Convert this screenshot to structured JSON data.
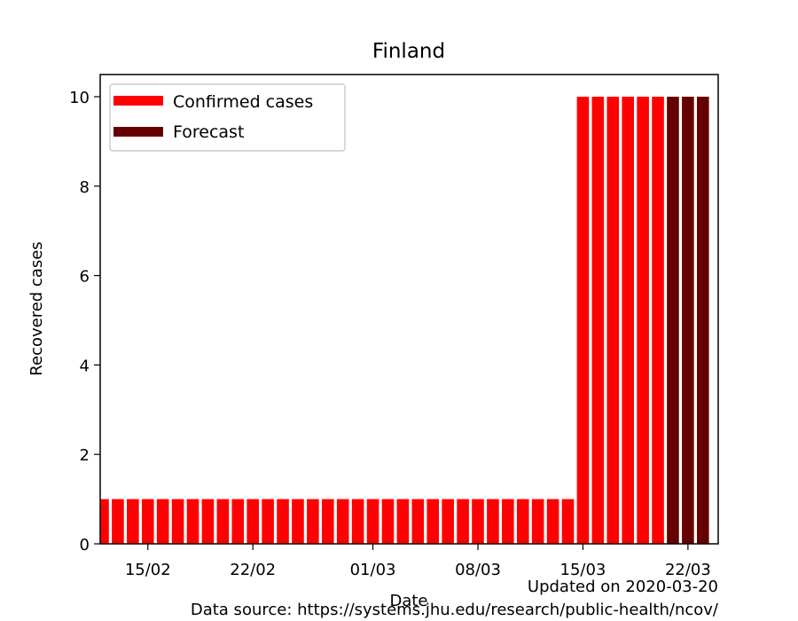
{
  "chart_data": {
    "type": "bar",
    "title": "Finland",
    "xlabel": "Date",
    "ylabel": "Recovered cases",
    "ylim": [
      0,
      10.5
    ],
    "yticks": [
      0,
      2,
      4,
      6,
      8,
      10
    ],
    "xticks": [
      "15/02",
      "22/02",
      "01/03",
      "08/03",
      "15/03",
      "22/03"
    ],
    "grid": false,
    "legend_position": "top-left",
    "series": [
      {
        "name": "Confirmed cases",
        "color": "#ff0000",
        "x": [
          "2020-02-12",
          "2020-02-13",
          "2020-02-14",
          "2020-02-15",
          "2020-02-16",
          "2020-02-17",
          "2020-02-18",
          "2020-02-19",
          "2020-02-20",
          "2020-02-21",
          "2020-02-22",
          "2020-02-23",
          "2020-02-24",
          "2020-02-25",
          "2020-02-26",
          "2020-02-27",
          "2020-02-28",
          "2020-02-29",
          "2020-03-01",
          "2020-03-02",
          "2020-03-03",
          "2020-03-04",
          "2020-03-05",
          "2020-03-06",
          "2020-03-07",
          "2020-03-08",
          "2020-03-09",
          "2020-03-10",
          "2020-03-11",
          "2020-03-12",
          "2020-03-13",
          "2020-03-14",
          "2020-03-15",
          "2020-03-16",
          "2020-03-17",
          "2020-03-18",
          "2020-03-19",
          "2020-03-20"
        ],
        "values": [
          1,
          1,
          1,
          1,
          1,
          1,
          1,
          1,
          1,
          1,
          1,
          1,
          1,
          1,
          1,
          1,
          1,
          1,
          1,
          1,
          1,
          1,
          1,
          1,
          1,
          1,
          1,
          1,
          1,
          1,
          1,
          1,
          10,
          10,
          10,
          10,
          10,
          10
        ]
      },
      {
        "name": "Forecast",
        "color": "#660000",
        "x": [
          "2020-03-21",
          "2020-03-22",
          "2020-03-23"
        ],
        "values": [
          10,
          10,
          10
        ]
      }
    ]
  },
  "footer": {
    "updated": "Updated on 2020-03-20",
    "source": "Data source: https://systems.jhu.edu/research/public-health/ncov/"
  }
}
